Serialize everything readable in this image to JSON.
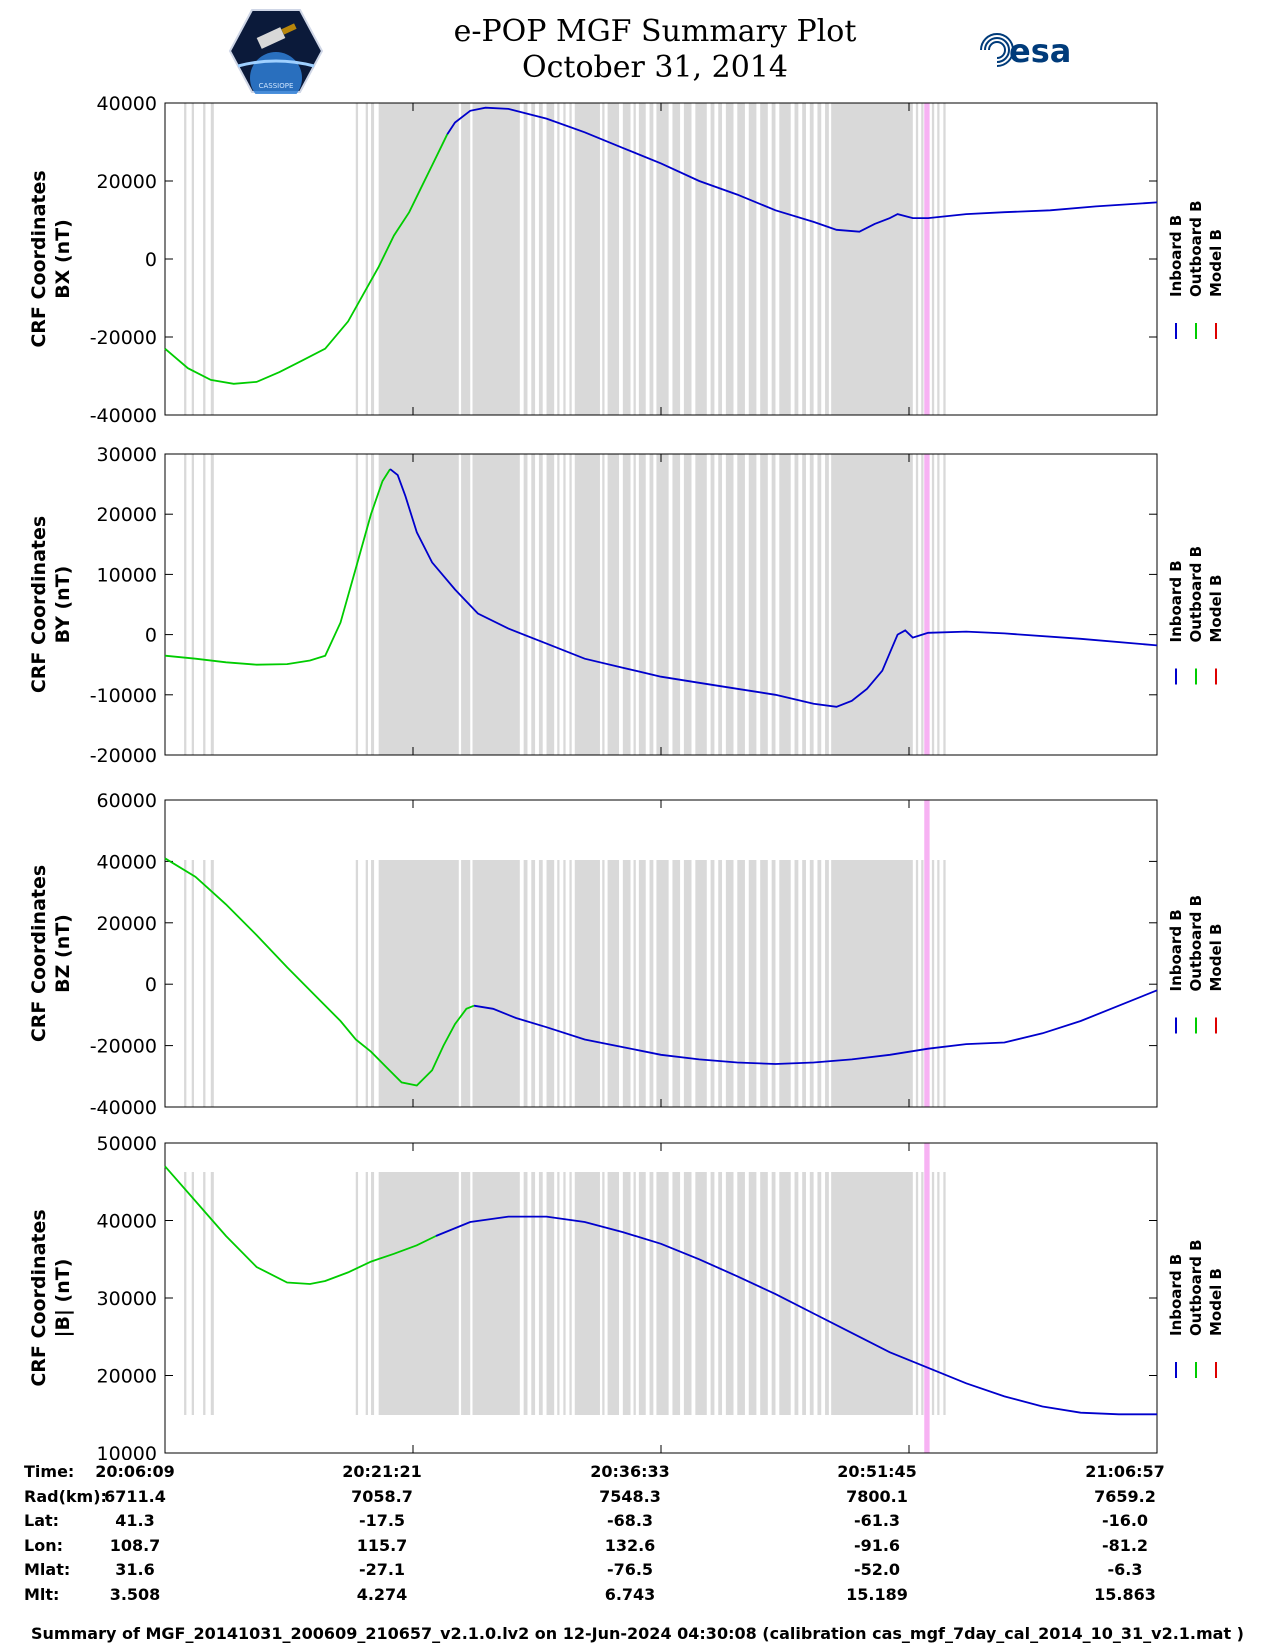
{
  "header": {
    "title_line1": "e-POP MGF Summary Plot",
    "title_line2": "October 31, 2014",
    "logo_right_text": "esa",
    "logo_left_text": "CASSIOPE"
  },
  "colors": {
    "inboard": "#0000cc",
    "outboard": "#00cc00",
    "model": "#dd0000",
    "gap_shading": "#d9d9d9",
    "event": "#f7b2f3"
  },
  "chart_data": [
    {
      "type": "line",
      "ylabel_line1": "CRF Coordinates",
      "ylabel_line2": "BX (nT)",
      "ylim": [
        -40000,
        40000
      ],
      "yticks": [
        "40000",
        "20000",
        "0",
        "-20000",
        "-40000"
      ],
      "legend": [
        "Inboard B",
        "Outboard B",
        "Model B"
      ],
      "series": [
        {
          "name": "Outboard B",
          "x": [
            0,
            3,
            6,
            9,
            12,
            15,
            18,
            21,
            24,
            26,
            28,
            30,
            32,
            33.5,
            35,
            36,
            37
          ],
          "y": [
            -23000,
            -28000,
            -31000,
            -32000,
            -31500,
            -29000,
            -26000,
            -23000,
            -16000,
            -9000,
            -2000,
            6000,
            12000,
            18000,
            24000,
            28000,
            32000
          ]
        },
        {
          "name": "Inboard B",
          "x": [
            37,
            38,
            40,
            42,
            45,
            48,
            50,
            55,
            60,
            65,
            70,
            75,
            80,
            85,
            88,
            91,
            93,
            95,
            96,
            98,
            100,
            105,
            110,
            116,
            122,
            130
          ],
          "y": [
            32000,
            35000,
            38000,
            38800,
            38500,
            37000,
            36000,
            32500,
            28500,
            24500,
            20000,
            16500,
            12500,
            9500,
            7500,
            7000,
            9000,
            10500,
            11500,
            10500,
            10500,
            11500,
            12000,
            12500,
            13500,
            14500
          ]
        }
      ]
    },
    {
      "type": "line",
      "ylabel_line1": "CRF Coordinates",
      "ylabel_line2": "BY (nT)",
      "ylim": [
        -20000,
        30000
      ],
      "yticks": [
        "30000",
        "20000",
        "10000",
        "0",
        "-10000",
        "-20000"
      ],
      "legend": [
        "Inboard B",
        "Outboard B",
        "Model B"
      ],
      "series": [
        {
          "name": "Outboard B",
          "x": [
            0,
            4,
            8,
            12,
            16,
            19,
            21,
            23,
            25,
            27,
            28.5,
            29.5
          ],
          "y": [
            -3500,
            -4000,
            -4600,
            -5000,
            -4900,
            -4300,
            -3500,
            2000,
            11000,
            20000,
            25500,
            27500
          ]
        },
        {
          "name": "Inboard B",
          "x": [
            29.5,
            30.5,
            31.5,
            33,
            35,
            38,
            41,
            45,
            50,
            55,
            60,
            65,
            70,
            75,
            80,
            85,
            88,
            90,
            92,
            94,
            95,
            96,
            97,
            98,
            100,
            105,
            110,
            120,
            130
          ],
          "y": [
            27500,
            26500,
            23000,
            17000,
            12000,
            7500,
            3500,
            1000,
            -1500,
            -4000,
            -5500,
            -7000,
            -8000,
            -9000,
            -10000,
            -11500,
            -12000,
            -11000,
            -9000,
            -6000,
            -3000,
            0,
            700,
            -500,
            300,
            500,
            200,
            -700,
            -1800
          ]
        }
      ]
    },
    {
      "type": "line",
      "ylabel_line1": "CRF Coordinates",
      "ylabel_line2": "BZ (nT)",
      "ylim": [
        -40000,
        60000
      ],
      "yticks": [
        "60000",
        "40000",
        "20000",
        "0",
        "-20000",
        "-40000"
      ],
      "legend": [
        "Inboard B",
        "Outboard B",
        "Model B"
      ],
      "series": [
        {
          "name": "Outboard B",
          "x": [
            0,
            4,
            8,
            12,
            16,
            20,
            23,
            25,
            27,
            29,
            31,
            33,
            35,
            36.5,
            38,
            39.5,
            40.5
          ],
          "y": [
            41000,
            35000,
            26000,
            16000,
            5500,
            -4500,
            -12000,
            -18000,
            -22000,
            -27000,
            -32000,
            -33000,
            -28000,
            -20000,
            -13000,
            -8000,
            -7000
          ]
        },
        {
          "name": "Inboard B",
          "x": [
            40.5,
            43,
            46,
            50,
            55,
            60,
            65,
            70,
            75,
            80,
            85,
            90,
            95,
            100,
            105,
            110,
            115,
            120,
            125,
            130
          ],
          "y": [
            -7000,
            -8000,
            -11000,
            -14000,
            -18000,
            -20500,
            -23000,
            -24500,
            -25500,
            -26000,
            -25500,
            -24500,
            -23000,
            -21000,
            -19500,
            -19000,
            -16000,
            -12000,
            -7000,
            -2000
          ]
        }
      ]
    },
    {
      "type": "line",
      "ylabel_line1": "CRF Coordinates",
      "ylabel_line2": "|B| (nT)",
      "ylim": [
        10000,
        50000
      ],
      "yticks": [
        "50000",
        "40000",
        "30000",
        "20000",
        "10000"
      ],
      "legend": [
        "Inboard B",
        "Outboard B",
        "Model B"
      ],
      "series": [
        {
          "name": "Outboard B",
          "x": [
            0,
            4,
            8,
            12,
            16,
            19,
            21,
            24,
            27,
            30,
            33,
            35.5
          ],
          "y": [
            47000,
            42500,
            38000,
            34000,
            32000,
            31800,
            32200,
            33300,
            34700,
            35700,
            36800,
            38000
          ]
        },
        {
          "name": "Inboard B",
          "x": [
            35.5,
            40,
            45,
            50,
            55,
            60,
            65,
            70,
            75,
            80,
            85,
            90,
            95,
            100,
            105,
            110,
            115,
            120,
            125,
            130
          ],
          "y": [
            38000,
            39800,
            40500,
            40500,
            39800,
            38500,
            37000,
            35000,
            32800,
            30500,
            28000,
            25500,
            23000,
            21000,
            19000,
            17300,
            16000,
            15200,
            15000,
            15000
          ]
        }
      ]
    }
  ],
  "x_range_minutes": [
    0,
    130
  ],
  "gap_intervals": [
    [
      2.5,
      2.8
    ],
    [
      3.5,
      3.8
    ],
    [
      5,
      5.3
    ],
    [
      6,
      6.4
    ],
    [
      25,
      25.3
    ],
    [
      26.3,
      26.6
    ],
    [
      27,
      27.4
    ],
    [
      28,
      38.5
    ],
    [
      38.8,
      40
    ],
    [
      40.3,
      46.5
    ],
    [
      47,
      47.5
    ],
    [
      48,
      48.5
    ],
    [
      49,
      49.5
    ],
    [
      50,
      51
    ],
    [
      51.4,
      51.7
    ],
    [
      52.2,
      52.5
    ],
    [
      53,
      53.3
    ],
    [
      53.7,
      57
    ],
    [
      57.3,
      57.6
    ],
    [
      58,
      59.5
    ],
    [
      60,
      61
    ],
    [
      61.4,
      61.7
    ],
    [
      62.1,
      63
    ],
    [
      63.5,
      64
    ],
    [
      64.4,
      66
    ],
    [
      66.5,
      67.5
    ],
    [
      68,
      69
    ],
    [
      69.5,
      71
    ],
    [
      71.5,
      72
    ],
    [
      72.5,
      73
    ],
    [
      73.5,
      74.5
    ],
    [
      75,
      76
    ],
    [
      76.5,
      77.5
    ],
    [
      78,
      79
    ],
    [
      79.5,
      80
    ],
    [
      80.5,
      82
    ],
    [
      82.5,
      83
    ],
    [
      83.5,
      84
    ],
    [
      84.5,
      85
    ],
    [
      85.5,
      86
    ],
    [
      86.5,
      87
    ],
    [
      87.3,
      98
    ],
    [
      98.4,
      98.7
    ],
    [
      99.1,
      99.4
    ],
    [
      99.8,
      100.1
    ],
    [
      100.5,
      100.8
    ],
    [
      101.2,
      101.5
    ],
    [
      102,
      102.3
    ]
  ],
  "event_interval": [
    99.5,
    100.2
  ],
  "xticks_minutes": [
    0,
    32.5,
    65,
    97.5,
    130
  ],
  "footer": {
    "rows": [
      {
        "label": "Time:",
        "values": [
          "20:06:09",
          "20:21:21",
          "20:36:33",
          "20:51:45",
          "21:06:57"
        ]
      },
      {
        "label": "Rad(km):",
        "values": [
          "6711.4",
          "7058.7",
          "7548.3",
          "7800.1",
          "7659.2"
        ]
      },
      {
        "label": "Lat:",
        "values": [
          "41.3",
          "-17.5",
          "-68.3",
          "-61.3",
          "-16.0"
        ]
      },
      {
        "label": "Lon:",
        "values": [
          "108.7",
          "115.7",
          "132.6",
          "-91.6",
          "-81.2"
        ]
      },
      {
        "label": "Mlat:",
        "values": [
          "31.6",
          "-27.1",
          "-76.5",
          "-52.0",
          "-6.3"
        ]
      },
      {
        "label": "Mlt:",
        "values": [
          "3.508",
          "4.274",
          "6.743",
          "15.189",
          "15.863"
        ]
      }
    ],
    "summary": "Summary of MGF_20141031_200609_210657_v2.1.0.lv2 on 12-Jun-2024 04:30:08 (calibration cas_mgf_7day_cal_2014_10_31_v2.1.mat )"
  }
}
